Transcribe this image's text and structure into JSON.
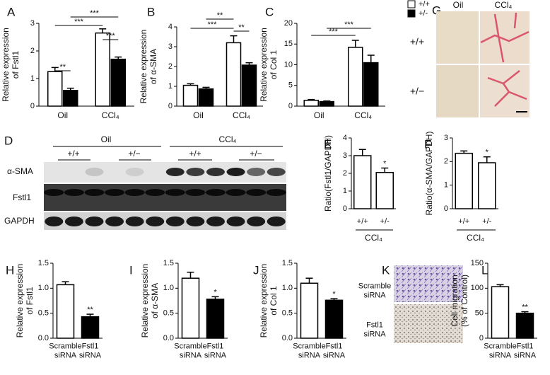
{
  "chart_data": [
    {
      "type": "bar",
      "panel": "A",
      "ylabel": [
        "Relative expression",
        "of Fstl1"
      ],
      "categories": [
        "Oil",
        "CCl₄"
      ],
      "series": [
        {
          "name": "+/+",
          "color": "#ffffff",
          "values": [
            1.25,
            2.65
          ],
          "errors": [
            0.15,
            0.15
          ]
        },
        {
          "name": "+/-",
          "color": "#000000",
          "values": [
            0.57,
            1.7
          ],
          "errors": [
            0.08,
            0.08
          ]
        }
      ],
      "ylim": [
        0,
        3
      ],
      "yticks": [
        0,
        1,
        2,
        3
      ],
      "annotations": [
        "**",
        "***",
        "***",
        "***"
      ]
    },
    {
      "type": "bar",
      "panel": "B",
      "ylabel": [
        "Relative expression",
        "of α-SMA"
      ],
      "categories": [
        "Oil",
        "CCl₄"
      ],
      "series": [
        {
          "name": "+/+",
          "color": "#ffffff",
          "values": [
            1.05,
            3.2
          ],
          "errors": [
            0.08,
            0.35
          ]
        },
        {
          "name": "+/-",
          "color": "#000000",
          "values": [
            0.87,
            2.07
          ],
          "errors": [
            0.08,
            0.12
          ]
        }
      ],
      "ylim": [
        0,
        4
      ],
      "yticks": [
        0,
        1,
        2,
        3,
        4
      ],
      "annotations": [
        "***",
        "**",
        "**"
      ]
    },
    {
      "type": "bar",
      "panel": "C",
      "ylabel": [
        "Relative expression",
        "of Col 1"
      ],
      "categories": [
        "Oil",
        "CCl₄"
      ],
      "series": [
        {
          "name": "+/+",
          "color": "#ffffff",
          "values": [
            1.4,
            14.2
          ],
          "errors": [
            0.2,
            1.7
          ]
        },
        {
          "name": "+/-",
          "color": "#000000",
          "values": [
            1.1,
            10.5
          ],
          "errors": [
            0.15,
            1.8
          ]
        }
      ],
      "ylim": [
        0,
        20
      ],
      "yticks": [
        0,
        5,
        10,
        15,
        20
      ],
      "annotations": [
        "***",
        "***"
      ],
      "legend": true
    },
    {
      "type": "bar",
      "panel": "E",
      "ylabel": [
        "Ratio(Fstl1/GAPDH)"
      ],
      "categories": [
        "+/+",
        "+/-"
      ],
      "group_label": "CCl₄",
      "values": [
        3.0,
        2.05
      ],
      "errors": [
        0.35,
        0.25
      ],
      "colors": [
        "#ffffff",
        "#ffffff"
      ],
      "ylim": [
        0,
        4
      ],
      "yticks": [
        0,
        1,
        2,
        3,
        4
      ],
      "annotations": [
        "*"
      ]
    },
    {
      "type": "bar",
      "panel": "F",
      "ylabel": [
        "Ratio(α-SMA/GAPDH)"
      ],
      "categories": [
        "+/+",
        "+/-"
      ],
      "group_label": "CCl₄",
      "values": [
        2.35,
        1.95
      ],
      "errors": [
        0.1,
        0.25
      ],
      "colors": [
        "#ffffff",
        "#ffffff"
      ],
      "ylim": [
        0,
        3
      ],
      "yticks": [
        0,
        1,
        2,
        3
      ],
      "annotations": [
        "*"
      ]
    },
    {
      "type": "bar",
      "panel": "H",
      "ylabel": [
        "Relative expression",
        "of Fstl1"
      ],
      "categories": [
        "Scramble siRNA",
        "Fstl1 siRNA"
      ],
      "values": [
        1.07,
        0.43
      ],
      "errors": [
        0.06,
        0.05
      ],
      "colors": [
        "#ffffff",
        "#000000"
      ],
      "ylim": [
        0,
        1.5
      ],
      "yticks": [
        {
          "value": 0,
          "label": "0.0"
        },
        0.5,
        {
          "value": 1,
          "label": "1.0"
        },
        1.5
      ],
      "annotations": [
        "**"
      ]
    },
    {
      "type": "bar",
      "panel": "I",
      "ylabel": [
        "Relative expression",
        "of α-SMA"
      ],
      "categories": [
        "Scramble siRNA",
        "Fstl1 siRNA"
      ],
      "values": [
        1.2,
        0.78
      ],
      "errors": [
        0.12,
        0.05
      ],
      "colors": [
        "#ffffff",
        "#000000"
      ],
      "ylim": [
        0,
        1.5
      ],
      "yticks": [
        {
          "value": 0,
          "label": "0.0"
        },
        0.5,
        {
          "value": 1,
          "label": "1.0"
        },
        1.5
      ],
      "annotations": [
        "*"
      ]
    },
    {
      "type": "bar",
      "panel": "J",
      "ylabel": [
        "Relative expression",
        "of Col 1"
      ],
      "categories": [
        "Scramble siRNA",
        "Fstl1 siRNA"
      ],
      "values": [
        1.1,
        0.76
      ],
      "errors": [
        0.1,
        0.03
      ],
      "colors": [
        "#ffffff",
        "#000000"
      ],
      "ylim": [
        0,
        1.5
      ],
      "yticks": [
        {
          "value": 0,
          "label": "0.0"
        },
        0.5,
        {
          "value": 1,
          "label": "1.0"
        },
        1.5
      ],
      "annotations": [
        "*"
      ]
    },
    {
      "type": "bar",
      "panel": "L",
      "ylabel": [
        "Cell migration",
        "(% of Control)"
      ],
      "categories": [
        "Scramble siRNA",
        "Fstl1 siRNA"
      ],
      "values": [
        103,
        50
      ],
      "errors": [
        4,
        3
      ],
      "colors": [
        "#ffffff",
        "#000000"
      ],
      "ylim": [
        0,
        150
      ],
      "yticks": [
        0,
        50,
        100,
        150
      ],
      "annotations": [
        "**"
      ]
    }
  ],
  "blot": {
    "panel": "D",
    "groups": [
      "Oil",
      "CCl₄"
    ],
    "genotypes": [
      "+/+",
      "+/−",
      "+/+",
      "+/−"
    ],
    "rows": [
      "α-SMA",
      "Fstl1",
      "GAPDH"
    ]
  },
  "histology": {
    "panel": "G",
    "columns": [
      "Oil",
      "CCl₄"
    ],
    "rows": [
      "+/+",
      "+/−"
    ]
  },
  "migration": {
    "panel": "K",
    "rows": [
      "Scramble siRNA",
      "Fstl1 siRNA"
    ]
  }
}
